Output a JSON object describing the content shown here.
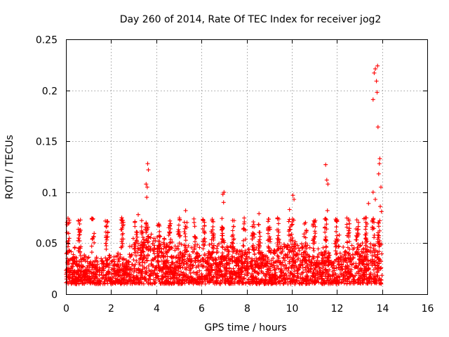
{
  "chart_data": {
    "type": "scatter",
    "title": "Day 260 of 2014, Rate Of TEC Index for receiver jog2",
    "xlabel": "GPS time / hours",
    "ylabel": "ROTI / TECUs",
    "xlim": [
      0,
      16
    ],
    "ylim": [
      0,
      0.25
    ],
    "xticks": [
      0,
      2,
      4,
      6,
      8,
      10,
      12,
      14,
      16
    ],
    "yticks": [
      0,
      0.05,
      0.1,
      0.15,
      0.2,
      0.25
    ],
    "ytick_labels": [
      "0",
      "0.05",
      "0.1",
      "0.15",
      "0.2",
      "0.25"
    ],
    "xtick_labels": [
      "0",
      "2",
      "4",
      "6",
      "8",
      "10",
      "12",
      "14",
      "16"
    ],
    "grid": true,
    "marker": "+",
    "color": "#ff0000",
    "series": [
      {
        "name": "ROTI",
        "description_range_hours": [
          0,
          14
        ],
        "notable_points": [
          {
            "x": 3.62,
            "y": 0.128
          },
          {
            "x": 3.65,
            "y": 0.122
          },
          {
            "x": 3.55,
            "y": 0.108
          },
          {
            "x": 3.6,
            "y": 0.105
          },
          {
            "x": 3.58,
            "y": 0.095
          },
          {
            "x": 3.2,
            "y": 0.078
          },
          {
            "x": 5.3,
            "y": 0.082
          },
          {
            "x": 6.95,
            "y": 0.098
          },
          {
            "x": 7.0,
            "y": 0.1
          },
          {
            "x": 6.98,
            "y": 0.09
          },
          {
            "x": 8.55,
            "y": 0.079
          },
          {
            "x": 9.9,
            "y": 0.083
          },
          {
            "x": 10.05,
            "y": 0.097
          },
          {
            "x": 10.1,
            "y": 0.093
          },
          {
            "x": 11.5,
            "y": 0.127
          },
          {
            "x": 11.55,
            "y": 0.112
          },
          {
            "x": 11.6,
            "y": 0.108
          },
          {
            "x": 11.58,
            "y": 0.082
          },
          {
            "x": 12.1,
            "y": 0.058
          },
          {
            "x": 13.2,
            "y": 0.074
          },
          {
            "x": 13.4,
            "y": 0.089
          },
          {
            "x": 13.6,
            "y": 0.191
          },
          {
            "x": 13.65,
            "y": 0.217
          },
          {
            "x": 13.7,
            "y": 0.221
          },
          {
            "x": 13.75,
            "y": 0.209
          },
          {
            "x": 13.8,
            "y": 0.224
          },
          {
            "x": 13.78,
            "y": 0.198
          },
          {
            "x": 13.82,
            "y": 0.164
          },
          {
            "x": 13.9,
            "y": 0.133
          },
          {
            "x": 13.88,
            "y": 0.128
          },
          {
            "x": 13.85,
            "y": 0.118
          },
          {
            "x": 13.95,
            "y": 0.105
          },
          {
            "x": 13.6,
            "y": 0.1
          },
          {
            "x": 13.7,
            "y": 0.093
          },
          {
            "x": 13.92,
            "y": 0.086
          },
          {
            "x": 13.97,
            "y": 0.081
          }
        ],
        "dense_band": {
          "x_start": 0,
          "x_end": 14,
          "y_min": 0.002,
          "y_max": 0.055
        }
      }
    ]
  }
}
